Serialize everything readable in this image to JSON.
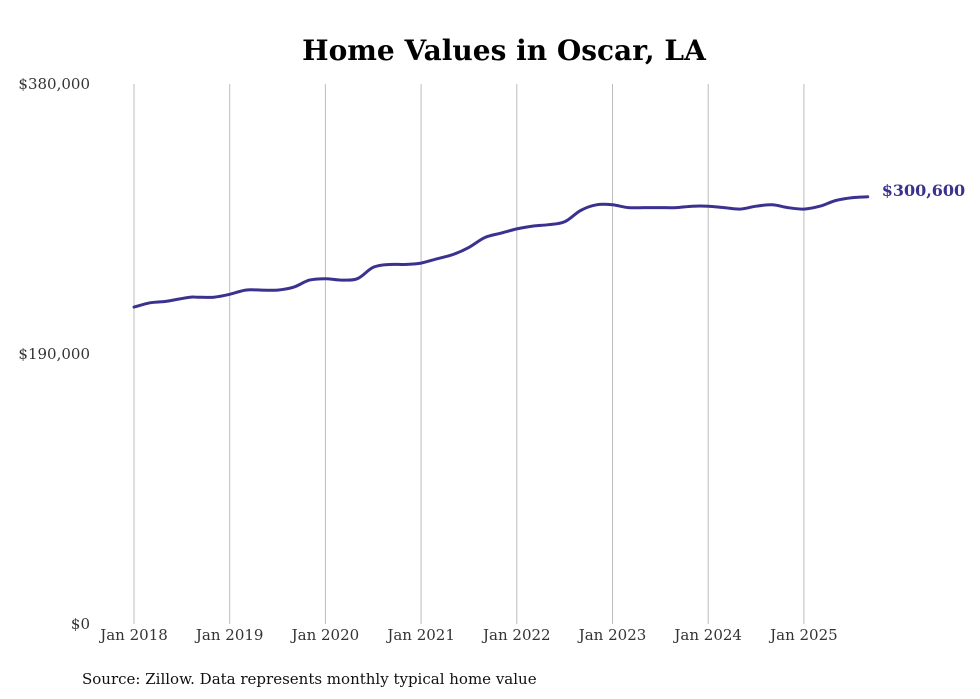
{
  "chart_data": {
    "type": "line",
    "title": "Home Values in Oscar, LA",
    "xlabel": "",
    "ylabel": "",
    "ylim": [
      0,
      380000
    ],
    "y_ticks": [
      0,
      190000,
      380000
    ],
    "y_tick_labels": [
      "$0",
      "$190,000",
      "$380,000"
    ],
    "x_range": [
      0,
      92
    ],
    "x_ticks": [
      0,
      12,
      24,
      36,
      48,
      60,
      72,
      84
    ],
    "x_tick_labels": [
      "Jan 2018",
      "Jan 2019",
      "Jan 2020",
      "Jan 2021",
      "Jan 2022",
      "Jan 2023",
      "Jan 2024",
      "Jan 2025"
    ],
    "grid": "vertical",
    "series": [
      {
        "name": "Typical home value",
        "color": "#3b3290",
        "end_label": "$300,600",
        "x": [
          0,
          2,
          4,
          5,
          7,
          8,
          10,
          12,
          14,
          16,
          18,
          20,
          22,
          24,
          26,
          28,
          30,
          32,
          34,
          36,
          38,
          40,
          42,
          44,
          46,
          48,
          50,
          52,
          54,
          56,
          58,
          60,
          62,
          64,
          66,
          68,
          70,
          72,
          74,
          76,
          78,
          80,
          82,
          84,
          86,
          88,
          90,
          92
        ],
        "y": [
          223000,
          226000,
          227000,
          228000,
          230000,
          230000,
          230000,
          232000,
          235000,
          235000,
          235000,
          237000,
          242000,
          243000,
          242000,
          243000,
          251000,
          253000,
          253000,
          254000,
          257000,
          260000,
          265000,
          272000,
          275000,
          278000,
          280000,
          281000,
          283000,
          291000,
          295000,
          295000,
          293000,
          293000,
          293000,
          293000,
          294000,
          294000,
          293000,
          292000,
          294000,
          295000,
          293000,
          292000,
          294000,
          298000,
          300000,
          300600
        ]
      }
    ]
  },
  "source_note": "Source: Zillow. Data represents monthly typical home value"
}
